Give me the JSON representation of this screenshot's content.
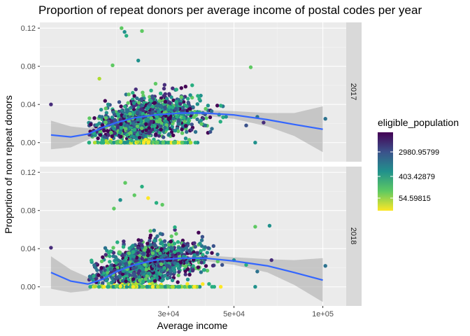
{
  "chart_data": {
    "type": "scatter",
    "title": "Proportion of repeat  donors per average income of postal codes per year",
    "xlabel": "Average income",
    "ylabel": "Proportion of non repeat donors",
    "x_scale": "log10",
    "xlim": [
      11000,
      120000
    ],
    "ylim": [
      -0.02,
      0.126
    ],
    "x_ticks": [
      30000,
      50000,
      100000
    ],
    "x_tick_labels": [
      "3e+04",
      "5e+04",
      "1e+05"
    ],
    "y_ticks": [
      0.0,
      0.04,
      0.08,
      0.12
    ],
    "y_tick_labels": [
      "0.00",
      "0.04",
      "0.08",
      "0.12"
    ],
    "grid": true,
    "facets": [
      "2017",
      "2018"
    ],
    "legend": {
      "title": "eligible_population",
      "placement": "right",
      "scale": "log",
      "labels": [
        "2980.95799",
        "403.42879",
        "54.59815"
      ],
      "colors": [
        "#440154",
        "#3b528b",
        "#21918c",
        "#5ec962",
        "#fde725"
      ]
    },
    "point_colors": [
      "#440154",
      "#472d7b",
      "#3b528b",
      "#2c728e",
      "#21918c",
      "#28ae80",
      "#5ec962",
      "#addc30",
      "#fde725"
    ],
    "smooth_color": "#3366ff",
    "band_color": "#999999",
    "panels": [
      {
        "facet": "2017",
        "smooth": [
          {
            "x": 12000,
            "y": 0.008
          },
          {
            "x": 14000,
            "y": 0.006
          },
          {
            "x": 16000,
            "y": 0.009
          },
          {
            "x": 18000,
            "y": 0.016
          },
          {
            "x": 20000,
            "y": 0.021
          },
          {
            "x": 23000,
            "y": 0.026
          },
          {
            "x": 27000,
            "y": 0.029
          },
          {
            "x": 33000,
            "y": 0.031
          },
          {
            "x": 40000,
            "y": 0.031
          },
          {
            "x": 50000,
            "y": 0.029
          },
          {
            "x": 65000,
            "y": 0.024
          },
          {
            "x": 80000,
            "y": 0.019
          },
          {
            "x": 100000,
            "y": 0.014
          }
        ],
        "band_half_width": [
          0.015,
          0.011,
          0.006,
          0.004,
          0.003,
          0.002,
          0.002,
          0.002,
          0.003,
          0.004,
          0.007,
          0.012,
          0.024
        ],
        "anchors": [
          {
            "x": 12000,
            "y": 0.04,
            "c": 1
          },
          {
            "x": 20800,
            "y": 0.12,
            "c": 6
          },
          {
            "x": 21300,
            "y": 0.116,
            "c": 4
          },
          {
            "x": 21600,
            "y": 0.112,
            "c": 5
          },
          {
            "x": 24400,
            "y": 0.117,
            "c": 6
          },
          {
            "x": 19400,
            "y": 0.081,
            "c": 6
          },
          {
            "x": 23700,
            "y": 0.086,
            "c": 4
          },
          {
            "x": 57000,
            "y": 0.079,
            "c": 6
          },
          {
            "x": 17500,
            "y": 0.067,
            "c": 7
          },
          {
            "x": 35000,
            "y": 0.042,
            "c": 2
          },
          {
            "x": 42000,
            "y": 0.033,
            "c": 3
          },
          {
            "x": 47000,
            "y": 0.027,
            "c": 4
          },
          {
            "x": 55000,
            "y": 0.018,
            "c": 2
          },
          {
            "x": 60000,
            "y": 0.027,
            "c": 3
          },
          {
            "x": 63000,
            "y": 0.021,
            "c": 1
          },
          {
            "x": 59000,
            "y": 0.0,
            "c": 4
          },
          {
            "x": 102000,
            "y": 0.025,
            "c": 3
          },
          {
            "x": 37000,
            "y": 0.0,
            "c": 5
          },
          {
            "x": 40000,
            "y": 0.018,
            "c": 3
          },
          {
            "x": 45000,
            "y": 0.022,
            "c": 5
          }
        ]
      },
      {
        "facet": "2018",
        "smooth": [
          {
            "x": 12000,
            "y": 0.015
          },
          {
            "x": 14000,
            "y": 0.006
          },
          {
            "x": 16000,
            "y": 0.003
          },
          {
            "x": 18000,
            "y": 0.008
          },
          {
            "x": 20000,
            "y": 0.016
          },
          {
            "x": 23000,
            "y": 0.023
          },
          {
            "x": 27000,
            "y": 0.028
          },
          {
            "x": 33000,
            "y": 0.03
          },
          {
            "x": 40000,
            "y": 0.03
          },
          {
            "x": 50000,
            "y": 0.027
          },
          {
            "x": 65000,
            "y": 0.022
          },
          {
            "x": 80000,
            "y": 0.015
          },
          {
            "x": 100000,
            "y": 0.007
          }
        ],
        "band_half_width": [
          0.017,
          0.012,
          0.007,
          0.004,
          0.003,
          0.002,
          0.002,
          0.002,
          0.003,
          0.004,
          0.007,
          0.013,
          0.023
        ],
        "anchors": [
          {
            "x": 12000,
            "y": 0.041,
            "c": 1
          },
          {
            "x": 21400,
            "y": 0.109,
            "c": 6
          },
          {
            "x": 24400,
            "y": 0.105,
            "c": 5
          },
          {
            "x": 23000,
            "y": 0.096,
            "c": 6
          },
          {
            "x": 20600,
            "y": 0.091,
            "c": 4
          },
          {
            "x": 25600,
            "y": 0.093,
            "c": 8
          },
          {
            "x": 27300,
            "y": 0.088,
            "c": 5
          },
          {
            "x": 19600,
            "y": 0.082,
            "c": 6
          },
          {
            "x": 28600,
            "y": 0.086,
            "c": 6
          },
          {
            "x": 59000,
            "y": 0.063,
            "c": 6
          },
          {
            "x": 66000,
            "y": 0.064,
            "c": 4
          },
          {
            "x": 37000,
            "y": 0.042,
            "c": 2
          },
          {
            "x": 44000,
            "y": 0.034,
            "c": 3
          },
          {
            "x": 50000,
            "y": 0.028,
            "c": 4
          },
          {
            "x": 55000,
            "y": 0.023,
            "c": 5
          },
          {
            "x": 60000,
            "y": 0.016,
            "c": 3
          },
          {
            "x": 67000,
            "y": 0.028,
            "c": 1
          },
          {
            "x": 59000,
            "y": 0.0,
            "c": 4
          },
          {
            "x": 102000,
            "y": 0.022,
            "c": 3
          },
          {
            "x": 30000,
            "y": 0.0,
            "c": 6
          }
        ]
      }
    ]
  }
}
